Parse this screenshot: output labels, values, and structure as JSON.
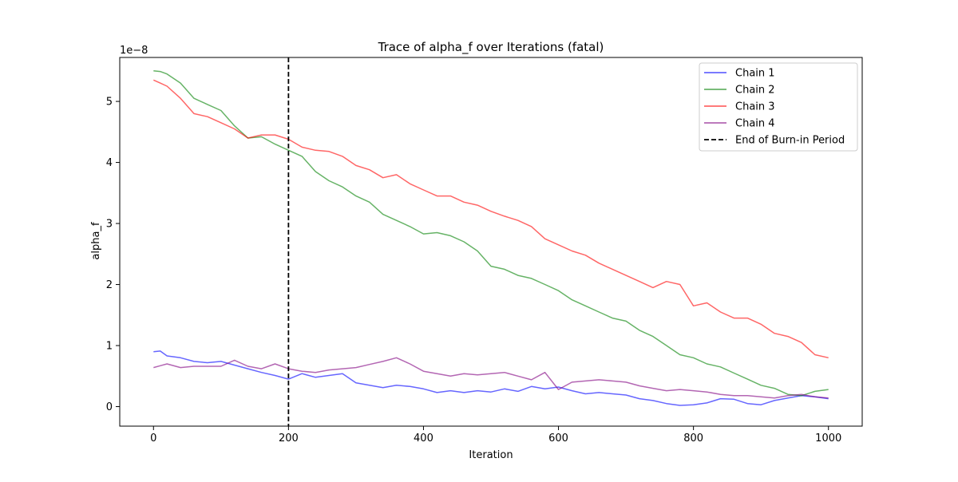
{
  "chart_data": {
    "type": "line",
    "title": "Trace of alpha_f over Iterations (fatal)",
    "xlabel": "Iteration",
    "ylabel": "alpha_f",
    "y_offset_label": "1e−8",
    "xlim": [
      -50,
      1050
    ],
    "ylim": [
      -3.2e-09,
      5.72e-08
    ],
    "xticks": [
      0,
      200,
      400,
      600,
      800,
      1000
    ],
    "xtick_labels": [
      "0",
      "200",
      "400",
      "600",
      "800",
      "1000"
    ],
    "yticks": [
      0,
      1e-08,
      2e-08,
      3e-08,
      4e-08,
      5e-08
    ],
    "ytick_labels": [
      "0",
      "1",
      "2",
      "3",
      "4",
      "5"
    ],
    "grid": false,
    "legend_position": "top-right",
    "burn_in": {
      "x": 200,
      "label": "End of Burn-in Period",
      "color": "#000000",
      "style": "dashed"
    },
    "series": [
      {
        "name": "Chain 1",
        "color": "#0000ff",
        "x": [
          0,
          10,
          20,
          40,
          60,
          80,
          100,
          120,
          140,
          160,
          180,
          200,
          220,
          240,
          260,
          280,
          300,
          320,
          340,
          360,
          380,
          400,
          420,
          440,
          460,
          480,
          500,
          520,
          540,
          560,
          580,
          600,
          620,
          640,
          660,
          680,
          700,
          720,
          740,
          760,
          780,
          800,
          820,
          840,
          860,
          880,
          900,
          920,
          940,
          960,
          980,
          1000
        ],
        "values": [
          9e-09,
          9.1e-09,
          8.3e-09,
          8e-09,
          7.4e-09,
          7.2e-09,
          7.4e-09,
          6.8e-09,
          6.2e-09,
          5.6e-09,
          5.1e-09,
          4.5e-09,
          5.4e-09,
          4.8e-09,
          5.1e-09,
          5.4e-09,
          3.9e-09,
          3.5e-09,
          3.1e-09,
          3.5e-09,
          3.3e-09,
          2.9e-09,
          2.3e-09,
          2.6e-09,
          2.3e-09,
          2.6e-09,
          2.4e-09,
          2.9e-09,
          2.5e-09,
          3.3e-09,
          2.9e-09,
          3.2e-09,
          2.6e-09,
          2.1e-09,
          2.3e-09,
          2.1e-09,
          1.9e-09,
          1.3e-09,
          1e-09,
          5e-10,
          2e-10,
          3e-10,
          6e-10,
          1.3e-09,
          1.2e-09,
          5e-10,
          3e-10,
          1e-09,
          1.4e-09,
          1.8e-09,
          1.6e-09,
          1.3e-09
        ]
      },
      {
        "name": "Chain 2",
        "color": "#008000",
        "x": [
          0,
          10,
          20,
          40,
          60,
          80,
          100,
          120,
          140,
          160,
          180,
          200,
          220,
          240,
          260,
          280,
          300,
          320,
          340,
          360,
          380,
          400,
          420,
          440,
          460,
          480,
          500,
          520,
          540,
          560,
          580,
          600,
          620,
          640,
          660,
          680,
          700,
          720,
          740,
          760,
          780,
          800,
          820,
          840,
          860,
          880,
          900,
          920,
          940,
          960,
          980,
          1000
        ],
        "values": [
          5.5e-08,
          5.49e-08,
          5.45e-08,
          5.3e-08,
          5.05e-08,
          4.95e-08,
          4.85e-08,
          4.6e-08,
          4.4e-08,
          4.42e-08,
          4.3e-08,
          4.2e-08,
          4.1e-08,
          3.85e-08,
          3.7e-08,
          3.6e-08,
          3.45e-08,
          3.35e-08,
          3.15e-08,
          3.05e-08,
          2.95e-08,
          2.83e-08,
          2.85e-08,
          2.8e-08,
          2.7e-08,
          2.55e-08,
          2.3e-08,
          2.25e-08,
          2.15e-08,
          2.1e-08,
          2e-08,
          1.9e-08,
          1.75e-08,
          1.65e-08,
          1.55e-08,
          1.45e-08,
          1.4e-08,
          1.25e-08,
          1.15e-08,
          1e-08,
          8.5e-09,
          8e-09,
          7e-09,
          6.5e-09,
          5.5e-09,
          4.5e-09,
          3.5e-09,
          3e-09,
          2e-09,
          1.8e-09,
          2.5e-09,
          2.8e-09
        ]
      },
      {
        "name": "Chain 3",
        "color": "#ff0000",
        "x": [
          0,
          10,
          20,
          40,
          60,
          80,
          100,
          120,
          140,
          160,
          180,
          200,
          220,
          240,
          260,
          280,
          300,
          320,
          340,
          360,
          380,
          400,
          420,
          440,
          460,
          480,
          500,
          520,
          540,
          560,
          580,
          600,
          620,
          640,
          660,
          680,
          700,
          720,
          740,
          760,
          780,
          800,
          820,
          840,
          860,
          880,
          900,
          920,
          940,
          960,
          980,
          1000
        ],
        "values": [
          5.35e-08,
          5.3e-08,
          5.25e-08,
          5.05e-08,
          4.8e-08,
          4.75e-08,
          4.65e-08,
          4.55e-08,
          4.4e-08,
          4.45e-08,
          4.45e-08,
          4.38e-08,
          4.25e-08,
          4.2e-08,
          4.18e-08,
          4.1e-08,
          3.95e-08,
          3.88e-08,
          3.75e-08,
          3.8e-08,
          3.65e-08,
          3.55e-08,
          3.45e-08,
          3.45e-08,
          3.35e-08,
          3.3e-08,
          3.2e-08,
          3.12e-08,
          3.05e-08,
          2.95e-08,
          2.75e-08,
          2.65e-08,
          2.55e-08,
          2.48e-08,
          2.35e-08,
          2.25e-08,
          2.15e-08,
          2.05e-08,
          1.95e-08,
          2.05e-08,
          2e-08,
          1.65e-08,
          1.7e-08,
          1.55e-08,
          1.45e-08,
          1.45e-08,
          1.35e-08,
          1.2e-08,
          1.15e-08,
          1.05e-08,
          8.5e-09,
          8e-09
        ]
      },
      {
        "name": "Chain 4",
        "color": "#800080",
        "x": [
          0,
          10,
          20,
          40,
          60,
          80,
          100,
          120,
          140,
          160,
          180,
          200,
          220,
          240,
          260,
          280,
          300,
          320,
          340,
          360,
          380,
          400,
          420,
          440,
          460,
          480,
          500,
          520,
          540,
          560,
          580,
          600,
          620,
          640,
          660,
          680,
          700,
          720,
          740,
          760,
          780,
          800,
          820,
          840,
          860,
          880,
          900,
          920,
          940,
          960,
          980,
          1000
        ],
        "values": [
          6.4e-09,
          6.7e-09,
          7e-09,
          6.4e-09,
          6.6e-09,
          6.6e-09,
          6.6e-09,
          7.6e-09,
          6.6e-09,
          6.2e-09,
          7e-09,
          6.2e-09,
          5.8e-09,
          5.6e-09,
          6e-09,
          6.2e-09,
          6.4e-09,
          6.9e-09,
          7.4e-09,
          8e-09,
          7e-09,
          5.8e-09,
          5.4e-09,
          5e-09,
          5.4e-09,
          5.2e-09,
          5.4e-09,
          5.6e-09,
          5e-09,
          4.4e-09,
          5.6e-09,
          2.8e-09,
          4e-09,
          4.2e-09,
          4.4e-09,
          4.2e-09,
          4e-09,
          3.4e-09,
          3e-09,
          2.6e-09,
          2.8e-09,
          2.6e-09,
          2.4e-09,
          2e-09,
          1.8e-09,
          1.8e-09,
          1.6e-09,
          1.4e-09,
          1.8e-09,
          2e-09,
          1.6e-09,
          1.4e-09
        ]
      }
    ]
  }
}
